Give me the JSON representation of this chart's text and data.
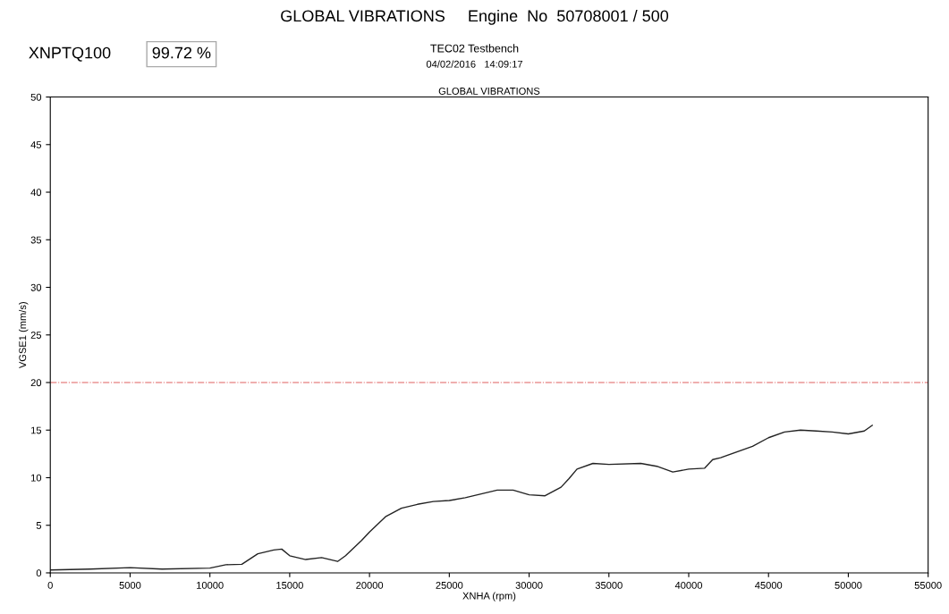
{
  "chart_data": {
    "type": "line",
    "title": "GLOBAL VIBRATIONS     Engine  No  50708001 / 500",
    "subtitle": "GLOBAL VIBRATIONS",
    "xlabel": "XNHA (rpm)",
    "ylabel": "VGSE1 (mm/s)",
    "annotations": [
      "XNPTQ100",
      "99.72 %",
      "TEC02 Testbench",
      "04/02/2016   14:09:17"
    ],
    "x": [
      0,
      2500,
      5000,
      7000,
      10000,
      11000,
      12000,
      13000,
      14000,
      14500,
      15000,
      16000,
      17000,
      18000,
      18500,
      19500,
      20000,
      21000,
      22000,
      23000,
      24000,
      25000,
      26000,
      27000,
      28000,
      29000,
      30000,
      31000,
      32000,
      32500,
      33000,
      34000,
      35000,
      37000,
      38000,
      39000,
      40000,
      41000,
      41500,
      42000,
      44000,
      45000,
      46000,
      47000,
      48000,
      49000,
      50000,
      51000,
      51500
    ],
    "series": [
      {
        "color": "#222222",
        "values": [
          0.3,
          0.4,
          0.55,
          0.4,
          0.5,
          0.85,
          0.9,
          2.0,
          2.4,
          2.5,
          1.8,
          1.4,
          1.6,
          1.2,
          1.8,
          3.4,
          4.3,
          5.9,
          6.8,
          7.2,
          7.5,
          7.6,
          7.9,
          8.3,
          8.7,
          8.7,
          8.2,
          8.1,
          9.0,
          9.9,
          10.9,
          11.5,
          11.4,
          11.5,
          11.2,
          10.6,
          10.9,
          11.0,
          11.9,
          12.1,
          13.3,
          14.2,
          14.8,
          15.0,
          14.9,
          14.8,
          14.6,
          14.9,
          15.5
        ]
      }
    ],
    "xlim": [
      0,
      55000
    ],
    "xticks": [
      0,
      5000,
      10000,
      15000,
      20000,
      25000,
      30000,
      35000,
      40000,
      45000,
      50000,
      55000
    ],
    "ylim": [
      0,
      50
    ],
    "yticks": [
      0,
      5,
      10,
      15,
      20,
      25,
      30,
      35,
      40,
      45,
      50
    ],
    "ref_lines": [
      {
        "axis": "y",
        "value": 20,
        "color": "#e06060",
        "line_style": "dashdot"
      }
    ],
    "grid": false,
    "legend": false,
    "marker": "none",
    "line_style": "solid"
  }
}
